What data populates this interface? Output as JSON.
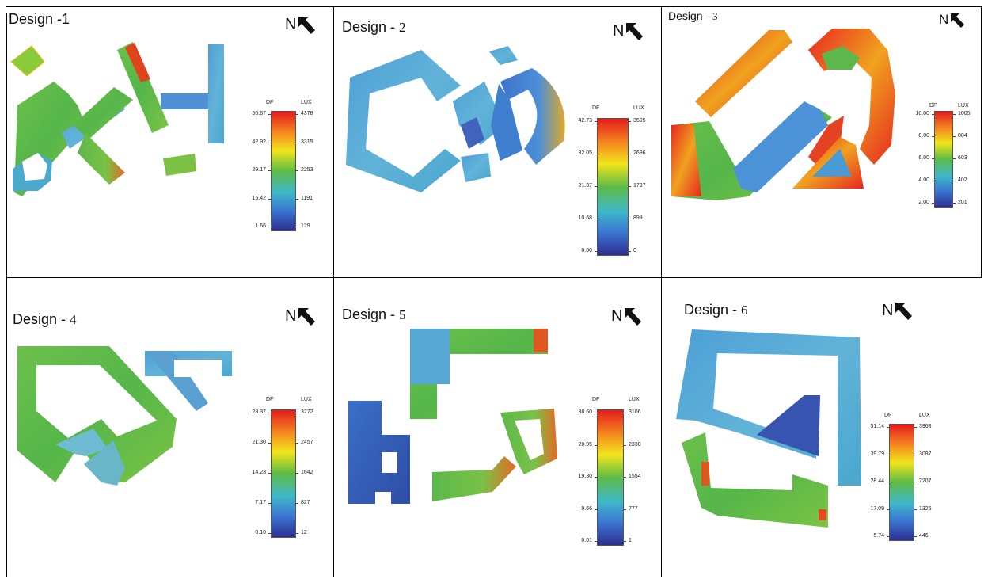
{
  "north_label": "N",
  "panels": [
    {
      "title_prefix": "Design -",
      "title_num": "1",
      "df_header": "DF",
      "lux_header": "LUX",
      "df": [
        "56.67",
        "42.92",
        "29.17",
        "15.42",
        "1.66"
      ],
      "lux": [
        "4378",
        "3315",
        "2253",
        "1191",
        "129"
      ]
    },
    {
      "title_prefix": "Design - ",
      "title_num": "2",
      "df_header": "DF",
      "lux_header": "LUX",
      "df": [
        "42.73",
        "32.05",
        "21.37",
        "10.68",
        "0.00"
      ],
      "lux": [
        "3595",
        "2696",
        "1797",
        "899",
        "0"
      ]
    },
    {
      "title_prefix": "Design - ",
      "title_num": "3",
      "df_header": "DF",
      "lux_header": "LUX",
      "df": [
        "10.00",
        "8.00",
        "6.00",
        "4.00",
        "2.00"
      ],
      "lux": [
        "1005",
        "804",
        "603",
        "402",
        "201"
      ]
    },
    {
      "title_prefix": "Design - ",
      "title_num": "4",
      "df_header": "DF",
      "lux_header": "LUX",
      "df": [
        "28.37",
        "21.30",
        "14.23",
        "7.17",
        "0.10"
      ],
      "lux": [
        "3272",
        "2457",
        "1642",
        "827",
        "12"
      ]
    },
    {
      "title_prefix": "Design - ",
      "title_num": "5",
      "df_header": "DF",
      "lux_header": "LUX",
      "df": [
        "38.60",
        "28.95",
        "19.30",
        "9.66",
        "0.01"
      ],
      "lux": [
        "3106",
        "2330",
        "1554",
        "777",
        "1"
      ]
    },
    {
      "title_prefix": "Design - ",
      "title_num": "6",
      "df_header": "DF",
      "lux_header": "LUX",
      "df": [
        "51.14",
        "39.79",
        "28.44",
        "17.09",
        "5.74"
      ],
      "lux": [
        "3968",
        "3087",
        "2207",
        "1326",
        "446"
      ]
    }
  ],
  "colors": {
    "red": "#e41c1c",
    "orange": "#f58a1f",
    "yellow": "#f2e51c",
    "green": "#5dbb46",
    "cyan": "#3fb8c9",
    "blue": "#3a73d0",
    "navy": "#2d2f8f"
  }
}
